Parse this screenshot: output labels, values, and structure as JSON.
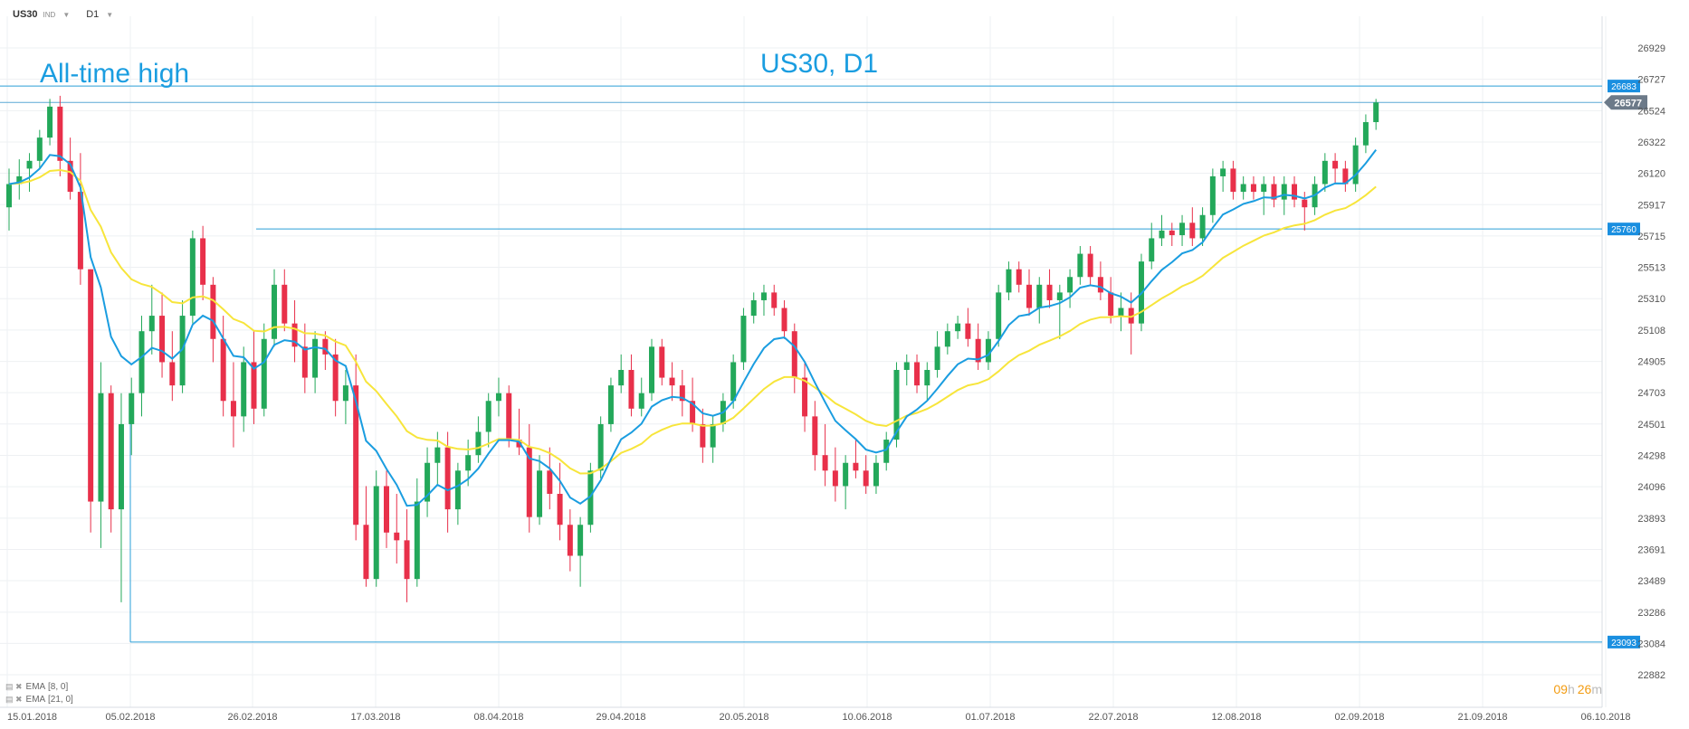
{
  "header": {
    "symbol": "US30",
    "instrument_type": "IND",
    "timeframe": "D1"
  },
  "indicators": [
    {
      "label": "EMA",
      "params": "[8, 0]",
      "color": "#1a9de0"
    },
    {
      "label": "EMA",
      "params": "[21, 0]",
      "color": "#f7e53b"
    }
  ],
  "annotations": {
    "title": "US30, D1",
    "all_time_high": "All-time high"
  },
  "countdown": {
    "hours": "09",
    "h": "h",
    "minutes": "26",
    "m": "m"
  },
  "colors": {
    "up": "#23a85a",
    "down": "#e8304a",
    "ema_fast": "#1a9de0",
    "ema_slow": "#f7e53b",
    "hline": "#2a9fd8",
    "price_tag": "#6c7a89",
    "countdown": "#f39c12"
  },
  "chart_data": {
    "type": "candlestick",
    "title": "US30, D1",
    "ylim": [
      22882,
      26929
    ],
    "y_ticks": [
      "26929",
      "26727",
      "26524",
      "26322",
      "26120",
      "25917",
      "25715",
      "25513",
      "25310",
      "25108",
      "24905",
      "24703",
      "24501",
      "24298",
      "24096",
      "23893",
      "23691",
      "23489",
      "23286",
      "23084",
      "22882"
    ],
    "x_ticks": [
      "15.01.2018",
      "05.02.2018",
      "26.02.2018",
      "17.03.2018",
      "08.04.2018",
      "29.04.2018",
      "20.05.2018",
      "10.06.2018",
      "01.07.2018",
      "22.07.2018",
      "12.08.2018",
      "02.09.2018",
      "21.09.2018",
      "06.10.2018"
    ],
    "horizontal_levels": [
      {
        "label": "26683",
        "value": 26683
      },
      {
        "label": "25760",
        "value": 25760
      },
      {
        "label": "23093",
        "value": 23093
      },
      {
        "label": "26577",
        "value": 26577
      }
    ],
    "current_price": "26577",
    "grid": true,
    "candles": [
      {
        "o": 25900,
        "h": 26150,
        "l": 25750,
        "c": 26050
      },
      {
        "o": 26050,
        "h": 26210,
        "l": 25950,
        "c": 26100
      },
      {
        "o": 26150,
        "h": 26250,
        "l": 26000,
        "c": 26200
      },
      {
        "o": 26200,
        "h": 26400,
        "l": 26150,
        "c": 26350
      },
      {
        "o": 26350,
        "h": 26600,
        "l": 26300,
        "c": 26550
      },
      {
        "o": 26550,
        "h": 26620,
        "l": 26100,
        "c": 26200
      },
      {
        "o": 26200,
        "h": 26350,
        "l": 25950,
        "c": 26000
      },
      {
        "o": 26000,
        "h": 26250,
        "l": 25400,
        "c": 25500
      },
      {
        "o": 25500,
        "h": 25500,
        "l": 23800,
        "c": 24000
      },
      {
        "o": 24000,
        "h": 24900,
        "l": 23700,
        "c": 24700
      },
      {
        "o": 24700,
        "h": 24750,
        "l": 23800,
        "c": 23950
      },
      {
        "o": 23950,
        "h": 24700,
        "l": 23350,
        "c": 24500
      },
      {
        "o": 24500,
        "h": 24800,
        "l": 24300,
        "c": 24700
      },
      {
        "o": 24700,
        "h": 25200,
        "l": 24550,
        "c": 25100
      },
      {
        "o": 25100,
        "h": 25400,
        "l": 24950,
        "c": 25200
      },
      {
        "o": 25200,
        "h": 25350,
        "l": 24800,
        "c": 24900
      },
      {
        "o": 24900,
        "h": 25100,
        "l": 24650,
        "c": 24750
      },
      {
        "o": 24750,
        "h": 25300,
        "l": 24700,
        "c": 25200
      },
      {
        "o": 25200,
        "h": 25750,
        "l": 25150,
        "c": 25700
      },
      {
        "o": 25700,
        "h": 25780,
        "l": 25300,
        "c": 25400
      },
      {
        "o": 25400,
        "h": 25450,
        "l": 24900,
        "c": 25050
      },
      {
        "o": 25050,
        "h": 25200,
        "l": 24550,
        "c": 24650
      },
      {
        "o": 24650,
        "h": 24900,
        "l": 24350,
        "c": 24550
      },
      {
        "o": 24550,
        "h": 25000,
        "l": 24450,
        "c": 24900
      },
      {
        "o": 24900,
        "h": 25100,
        "l": 24500,
        "c": 24600
      },
      {
        "o": 24600,
        "h": 25150,
        "l": 24550,
        "c": 25050
      },
      {
        "o": 25050,
        "h": 25500,
        "l": 25000,
        "c": 25400
      },
      {
        "o": 25400,
        "h": 25500,
        "l": 25100,
        "c": 25150
      },
      {
        "o": 25150,
        "h": 25300,
        "l": 24900,
        "c": 25000
      },
      {
        "o": 25000,
        "h": 25150,
        "l": 24700,
        "c": 24800
      },
      {
        "o": 24800,
        "h": 25100,
        "l": 24700,
        "c": 25050
      },
      {
        "o": 25050,
        "h": 25100,
        "l": 24850,
        "c": 24950
      },
      {
        "o": 24950,
        "h": 25050,
        "l": 24550,
        "c": 24650
      },
      {
        "o": 24650,
        "h": 24850,
        "l": 24500,
        "c": 24750
      },
      {
        "o": 24750,
        "h": 24950,
        "l": 23750,
        "c": 23850
      },
      {
        "o": 23850,
        "h": 24100,
        "l": 23450,
        "c": 23500
      },
      {
        "o": 23500,
        "h": 24200,
        "l": 23450,
        "c": 24100
      },
      {
        "o": 24100,
        "h": 24200,
        "l": 23700,
        "c": 23800
      },
      {
        "o": 23800,
        "h": 24050,
        "l": 23600,
        "c": 23750
      },
      {
        "o": 23750,
        "h": 23950,
        "l": 23350,
        "c": 23500
      },
      {
        "o": 23500,
        "h": 24150,
        "l": 23450,
        "c": 24000
      },
      {
        "o": 24000,
        "h": 24350,
        "l": 23900,
        "c": 24250
      },
      {
        "o": 24250,
        "h": 24450,
        "l": 24100,
        "c": 24350
      },
      {
        "o": 24350,
        "h": 24450,
        "l": 23800,
        "c": 23950
      },
      {
        "o": 23950,
        "h": 24250,
        "l": 23850,
        "c": 24200
      },
      {
        "o": 24200,
        "h": 24400,
        "l": 24100,
        "c": 24300
      },
      {
        "o": 24300,
        "h": 24550,
        "l": 24250,
        "c": 24450
      },
      {
        "o": 24450,
        "h": 24700,
        "l": 24350,
        "c": 24650
      },
      {
        "o": 24650,
        "h": 24800,
        "l": 24550,
        "c": 24700
      },
      {
        "o": 24700,
        "h": 24750,
        "l": 24350,
        "c": 24400
      },
      {
        "o": 24400,
        "h": 24600,
        "l": 24300,
        "c": 24350
      },
      {
        "o": 24350,
        "h": 24500,
        "l": 23800,
        "c": 23900
      },
      {
        "o": 23900,
        "h": 24300,
        "l": 23850,
        "c": 24200
      },
      {
        "o": 24200,
        "h": 24350,
        "l": 23950,
        "c": 24050
      },
      {
        "o": 24050,
        "h": 24250,
        "l": 23750,
        "c": 23850
      },
      {
        "o": 23850,
        "h": 23950,
        "l": 23550,
        "c": 23650
      },
      {
        "o": 23650,
        "h": 23900,
        "l": 23450,
        "c": 23850
      },
      {
        "o": 23850,
        "h": 24250,
        "l": 23800,
        "c": 24200
      },
      {
        "o": 24200,
        "h": 24550,
        "l": 24150,
        "c": 24500
      },
      {
        "o": 24500,
        "h": 24800,
        "l": 24450,
        "c": 24750
      },
      {
        "o": 24750,
        "h": 24950,
        "l": 24700,
        "c": 24850
      },
      {
        "o": 24850,
        "h": 24950,
        "l": 24550,
        "c": 24600
      },
      {
        "o": 24600,
        "h": 24800,
        "l": 24550,
        "c": 24700
      },
      {
        "o": 24700,
        "h": 25050,
        "l": 24650,
        "c": 25000
      },
      {
        "o": 25000,
        "h": 25050,
        "l": 24750,
        "c": 24800
      },
      {
        "o": 24800,
        "h": 24900,
        "l": 24650,
        "c": 24750
      },
      {
        "o": 24750,
        "h": 24850,
        "l": 24550,
        "c": 24650
      },
      {
        "o": 24650,
        "h": 24800,
        "l": 24450,
        "c": 24500
      },
      {
        "o": 24500,
        "h": 24600,
        "l": 24250,
        "c": 24350
      },
      {
        "o": 24350,
        "h": 24550,
        "l": 24250,
        "c": 24500
      },
      {
        "o": 24500,
        "h": 24700,
        "l": 24450,
        "c": 24650
      },
      {
        "o": 24650,
        "h": 24950,
        "l": 24600,
        "c": 24900
      },
      {
        "o": 24900,
        "h": 25250,
        "l": 24850,
        "c": 25200
      },
      {
        "o": 25200,
        "h": 25350,
        "l": 25150,
        "c": 25300
      },
      {
        "o": 25300,
        "h": 25400,
        "l": 25200,
        "c": 25350
      },
      {
        "o": 25350,
        "h": 25400,
        "l": 25200,
        "c": 25250
      },
      {
        "o": 25250,
        "h": 25300,
        "l": 25050,
        "c": 25100
      },
      {
        "o": 25100,
        "h": 25150,
        "l": 24700,
        "c": 24800
      },
      {
        "o": 24800,
        "h": 24900,
        "l": 24450,
        "c": 24550
      },
      {
        "o": 24550,
        "h": 24650,
        "l": 24200,
        "c": 24300
      },
      {
        "o": 24300,
        "h": 24500,
        "l": 24100,
        "c": 24200
      },
      {
        "o": 24200,
        "h": 24350,
        "l": 24000,
        "c": 24100
      },
      {
        "o": 24100,
        "h": 24300,
        "l": 23950,
        "c": 24250
      },
      {
        "o": 24250,
        "h": 24400,
        "l": 24150,
        "c": 24200
      },
      {
        "o": 24200,
        "h": 24300,
        "l": 24050,
        "c": 24100
      },
      {
        "o": 24100,
        "h": 24300,
        "l": 24050,
        "c": 24250
      },
      {
        "o": 24250,
        "h": 24450,
        "l": 24200,
        "c": 24400
      },
      {
        "o": 24400,
        "h": 24900,
        "l": 24350,
        "c": 24850
      },
      {
        "o": 24850,
        "h": 24950,
        "l": 24750,
        "c": 24900
      },
      {
        "o": 24900,
        "h": 24950,
        "l": 24700,
        "c": 24750
      },
      {
        "o": 24750,
        "h": 24900,
        "l": 24650,
        "c": 24850
      },
      {
        "o": 24850,
        "h": 25100,
        "l": 24800,
        "c": 25000
      },
      {
        "o": 25000,
        "h": 25150,
        "l": 24950,
        "c": 25100
      },
      {
        "o": 25100,
        "h": 25200,
        "l": 25050,
        "c": 25150
      },
      {
        "o": 25150,
        "h": 25250,
        "l": 25000,
        "c": 25050
      },
      {
        "o": 25050,
        "h": 25150,
        "l": 24850,
        "c": 24900
      },
      {
        "o": 24900,
        "h": 25100,
        "l": 24850,
        "c": 25050
      },
      {
        "o": 25050,
        "h": 25400,
        "l": 25000,
        "c": 25350
      },
      {
        "o": 25350,
        "h": 25550,
        "l": 25300,
        "c": 25500
      },
      {
        "o": 25500,
        "h": 25550,
        "l": 25350,
        "c": 25400
      },
      {
        "o": 25400,
        "h": 25500,
        "l": 25200,
        "c": 25250
      },
      {
        "o": 25250,
        "h": 25450,
        "l": 25150,
        "c": 25400
      },
      {
        "o": 25400,
        "h": 25500,
        "l": 25250,
        "c": 25300
      },
      {
        "o": 25300,
        "h": 25400,
        "l": 25050,
        "c": 25350
      },
      {
        "o": 25350,
        "h": 25500,
        "l": 25250,
        "c": 25450
      },
      {
        "o": 25450,
        "h": 25650,
        "l": 25400,
        "c": 25600
      },
      {
        "o": 25600,
        "h": 25650,
        "l": 25400,
        "c": 25450
      },
      {
        "o": 25450,
        "h": 25550,
        "l": 25300,
        "c": 25350
      },
      {
        "o": 25350,
        "h": 25450,
        "l": 25150,
        "c": 25200
      },
      {
        "o": 25200,
        "h": 25350,
        "l": 25100,
        "c": 25250
      },
      {
        "o": 25250,
        "h": 25350,
        "l": 24950,
        "c": 25150
      },
      {
        "o": 25150,
        "h": 25600,
        "l": 25100,
        "c": 25550
      },
      {
        "o": 25550,
        "h": 25800,
        "l": 25500,
        "c": 25700
      },
      {
        "o": 25700,
        "h": 25850,
        "l": 25650,
        "c": 25750
      },
      {
        "o": 25750,
        "h": 25800,
        "l": 25650,
        "c": 25720
      },
      {
        "o": 25720,
        "h": 25850,
        "l": 25650,
        "c": 25800
      },
      {
        "o": 25800,
        "h": 25900,
        "l": 25650,
        "c": 25700
      },
      {
        "o": 25700,
        "h": 25900,
        "l": 25650,
        "c": 25850
      },
      {
        "o": 25850,
        "h": 26150,
        "l": 25800,
        "c": 26100
      },
      {
        "o": 26100,
        "h": 26200,
        "l": 26000,
        "c": 26150
      },
      {
        "o": 26150,
        "h": 26200,
        "l": 25950,
        "c": 26000
      },
      {
        "o": 26000,
        "h": 26100,
        "l": 25950,
        "c": 26050
      },
      {
        "o": 26050,
        "h": 26100,
        "l": 25950,
        "c": 26000
      },
      {
        "o": 26000,
        "h": 26100,
        "l": 25850,
        "c": 26050
      },
      {
        "o": 26050,
        "h": 26100,
        "l": 25900,
        "c": 25950
      },
      {
        "o": 25950,
        "h": 26100,
        "l": 25850,
        "c": 26050
      },
      {
        "o": 26050,
        "h": 26100,
        "l": 25900,
        "c": 25950
      },
      {
        "o": 25950,
        "h": 26000,
        "l": 25750,
        "c": 25900
      },
      {
        "o": 25900,
        "h": 26100,
        "l": 25850,
        "c": 26050
      },
      {
        "o": 26050,
        "h": 26250,
        "l": 26000,
        "c": 26200
      },
      {
        "o": 26200,
        "h": 26250,
        "l": 26050,
        "c": 26150
      },
      {
        "o": 26150,
        "h": 26200,
        "l": 26000,
        "c": 26050
      },
      {
        "o": 26050,
        "h": 26350,
        "l": 26000,
        "c": 26300
      },
      {
        "o": 26300,
        "h": 26500,
        "l": 26250,
        "c": 26450
      },
      {
        "o": 26450,
        "h": 26600,
        "l": 26400,
        "c": 26577
      }
    ]
  }
}
